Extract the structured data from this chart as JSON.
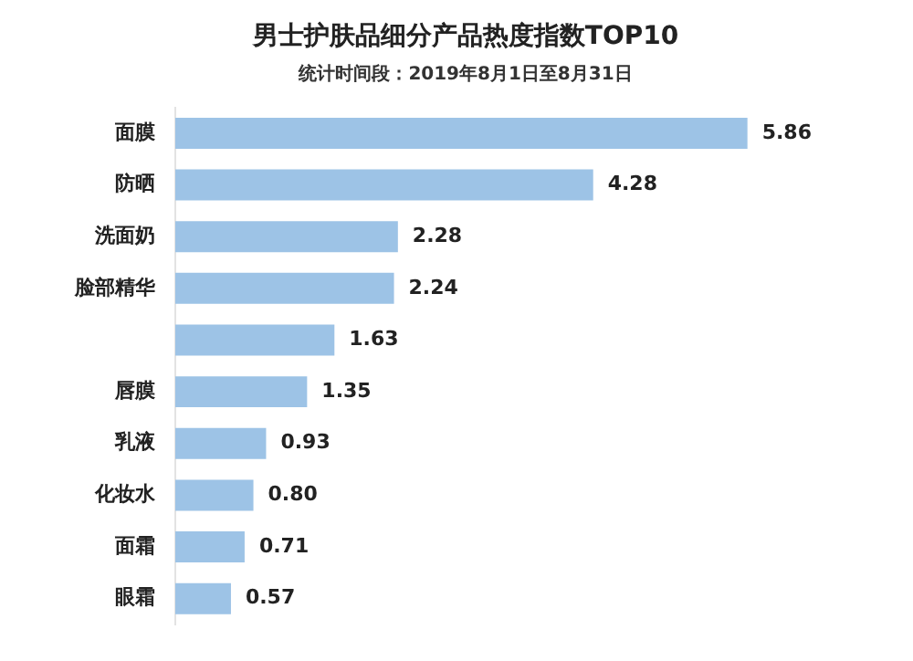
{
  "chart_data": {
    "type": "bar",
    "orientation": "horizontal",
    "title": "男士护肤品细分产品热度指数TOP10",
    "subtitle": "统计时间段：2019年8月1日至8月31日",
    "categories": [
      "面膜",
      "防晒",
      "洗面奶",
      "脸部精华",
      null,
      "唇膜",
      "乳液",
      "化妆水",
      "面霜",
      "眼霜"
    ],
    "values": [
      5.86,
      4.28,
      2.28,
      2.24,
      1.63,
      1.35,
      0.93,
      0.8,
      0.71,
      0.57
    ],
    "value_labels": [
      "5.86",
      "4.28",
      "2.28",
      "2.24",
      "1.63",
      "1.35",
      "0.93",
      "0.80",
      "0.71",
      "0.57"
    ],
    "color": "#9dc3e6",
    "legend": false
  }
}
